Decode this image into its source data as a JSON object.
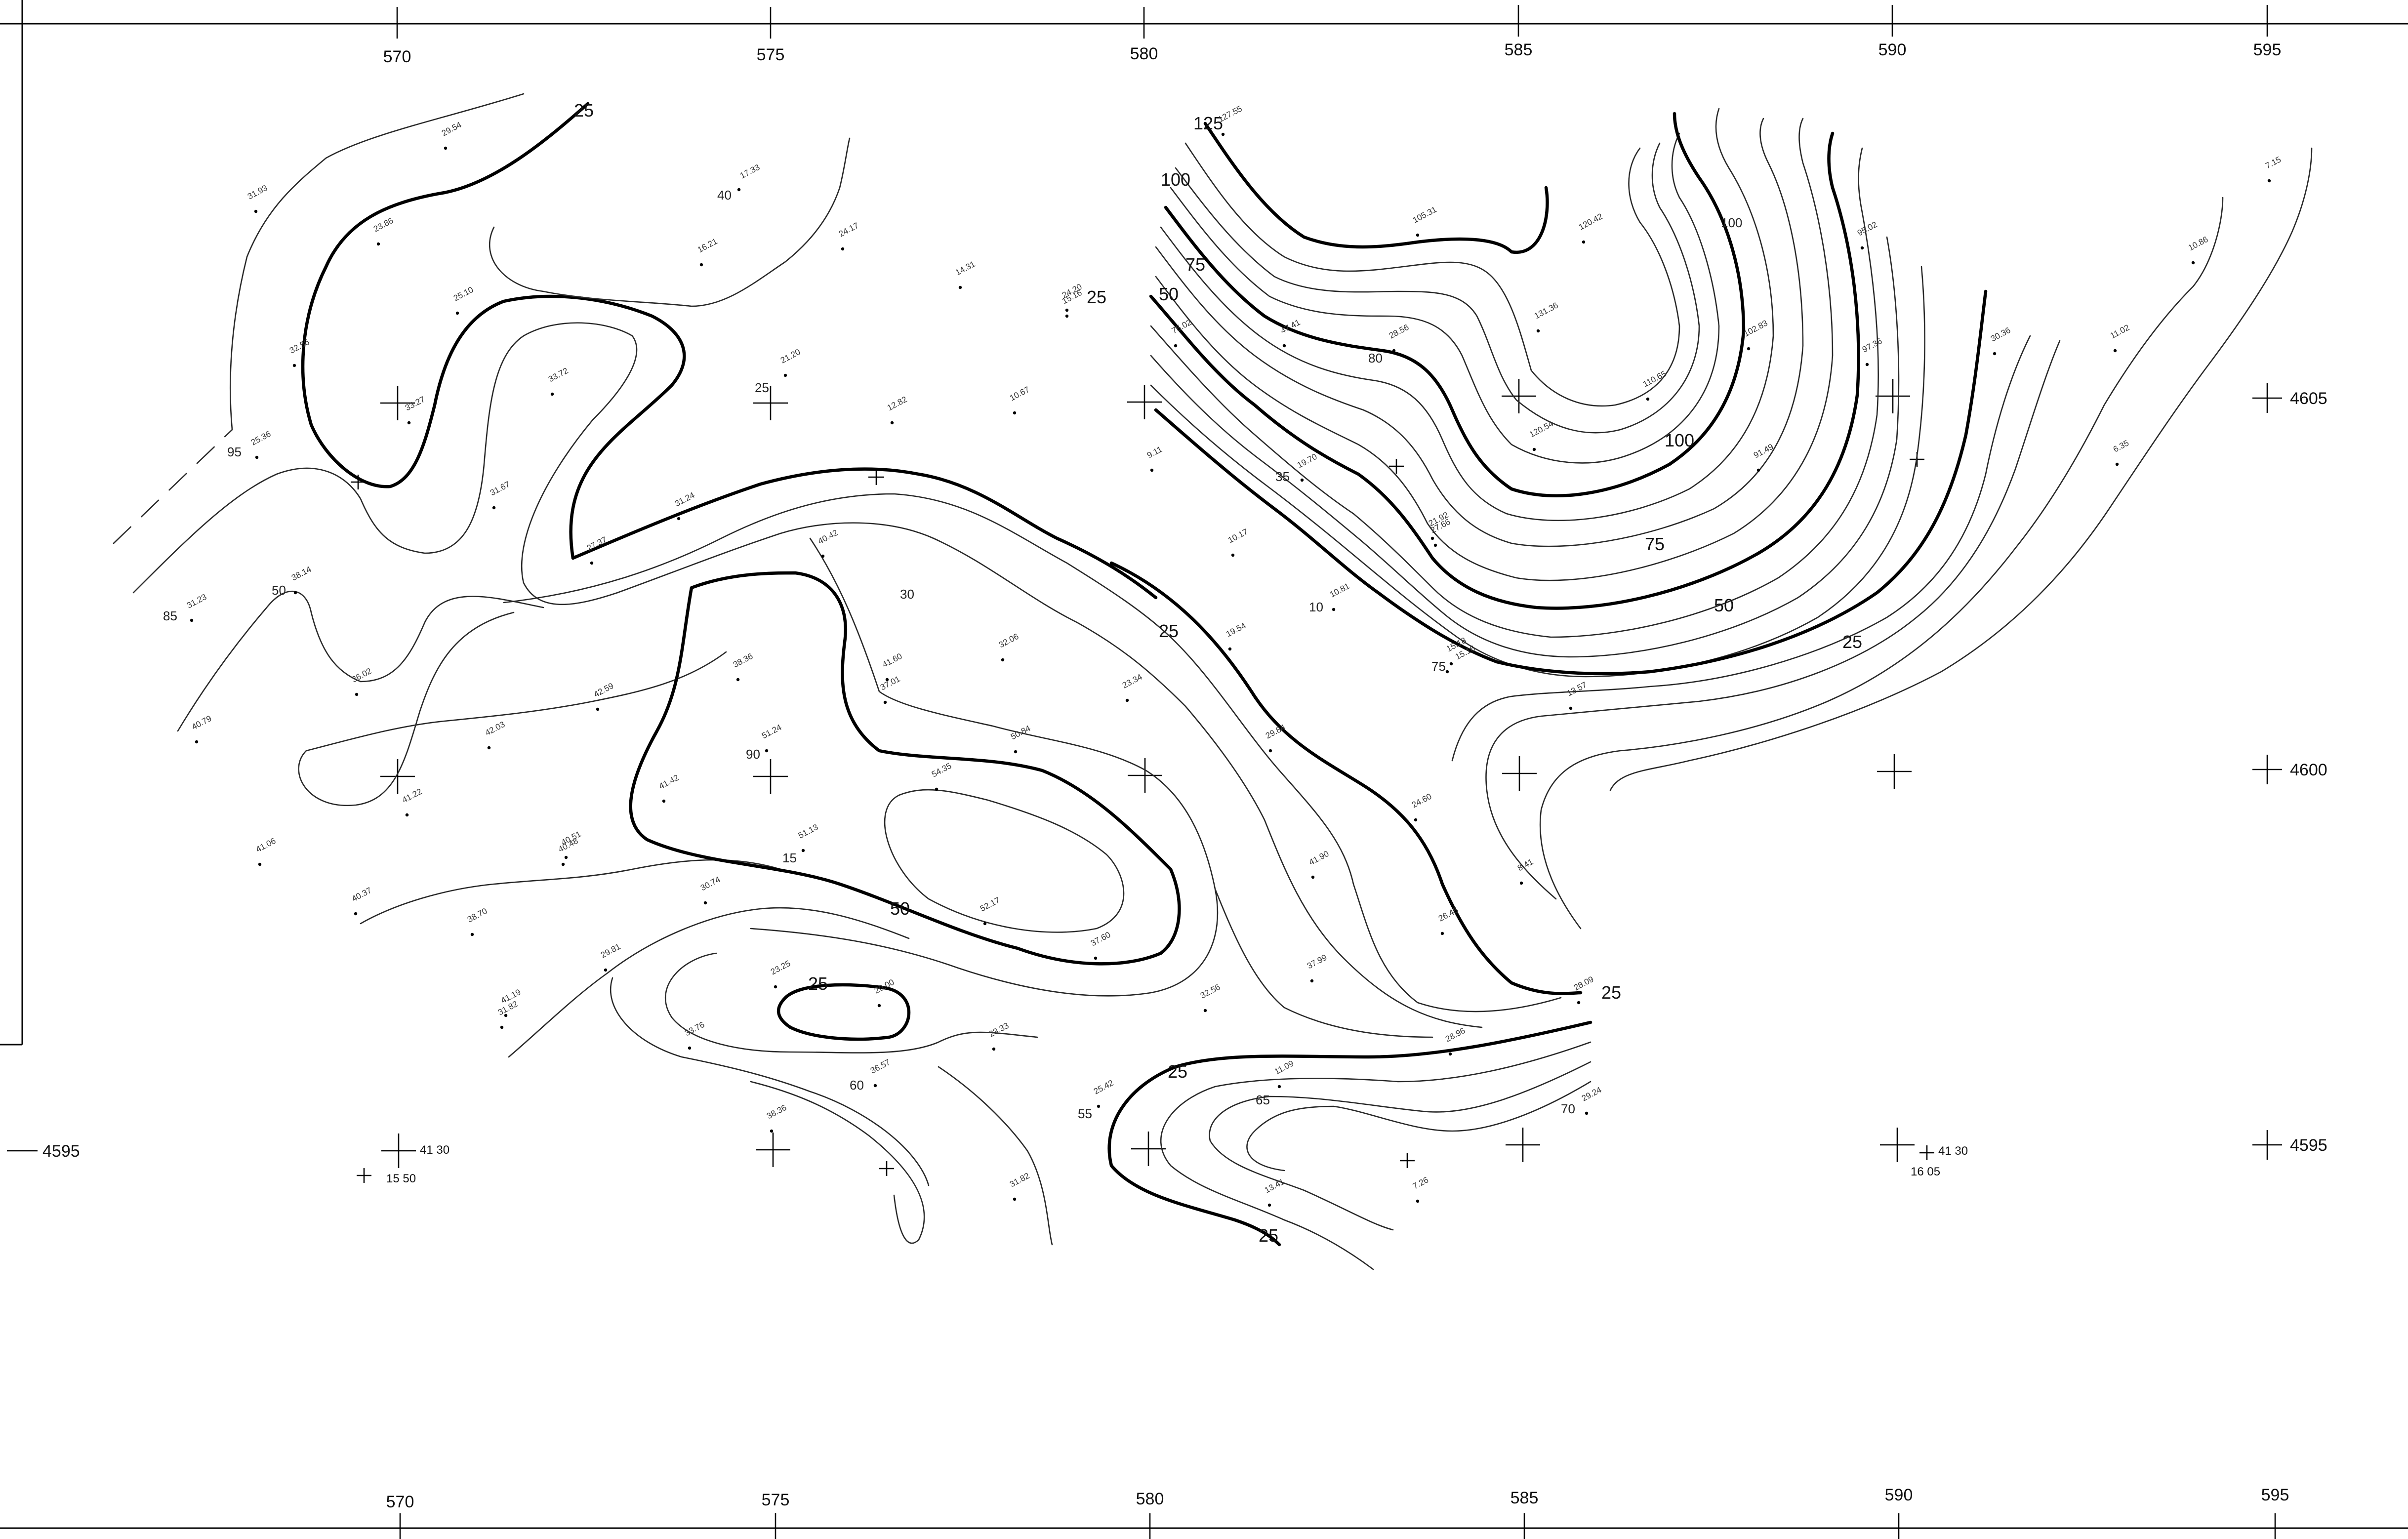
{
  "map": {
    "easting_ticks": [
      "570",
      "575",
      "580",
      "585",
      "590",
      "595"
    ],
    "northing_ticks": [
      "4605",
      "4600",
      "4595"
    ],
    "corner_annotations": [
      {
        "lat": "41 30",
        "lon": "15 50"
      },
      {
        "lat": "41 30",
        "lon": "16 05"
      }
    ],
    "contour_index_labels": [
      "25",
      "25",
      "25",
      "25",
      "25",
      "25",
      "25",
      "25",
      "50",
      "50",
      "50",
      "75",
      "75",
      "100",
      "100",
      "125"
    ],
    "contour_annotations": [
      "95",
      "85",
      "50",
      "40",
      "25",
      "30",
      "90",
      "15",
      "60",
      "55",
      "65",
      "70",
      "35",
      "10",
      "75",
      "80",
      "100"
    ],
    "spot_labels": [
      "31.93",
      "29.54",
      "23.86",
      "25.10",
      "32.56",
      "33.27",
      "25.36",
      "31.23",
      "38.14",
      "36.02",
      "40.79",
      "41.22",
      "41.06",
      "42.03",
      "40.48",
      "40.37",
      "38.70",
      "42.59",
      "31.82",
      "33.72",
      "29.81",
      "31.67",
      "27.37",
      "31.24",
      "17.33",
      "16.21",
      "24.17",
      "14.31",
      "15.16",
      "12.82",
      "10.67",
      "9.11",
      "19.70",
      "10.81",
      "10.17",
      "19.54",
      "15.16",
      "127.55",
      "105.31",
      "120.42",
      "131.36",
      "110.65",
      "120.54",
      "102.83",
      "91.49",
      "95.02",
      "97.36",
      "30.36",
      "11.02",
      "10.86",
      "7.15",
      "6.35",
      "13.57",
      "8.41",
      "28.09",
      "26.45",
      "41.90",
      "24.60",
      "23.34",
      "32.06",
      "37.01",
      "29.84",
      "38.36",
      "41.42",
      "51.24",
      "51.13",
      "50.84",
      "54.35",
      "52.17",
      "37.60",
      "41.60",
      "32.56",
      "37.99",
      "23.25",
      "20.00",
      "33.76",
      "23.33",
      "36.57",
      "38.36",
      "31.82",
      "28.96",
      "25.42",
      "11.09",
      "13.41",
      "7.26",
      "29.24",
      "41.19",
      "30.74",
      "40.51",
      "40.42",
      "21.20",
      "24.20",
      "21.92",
      "75.02",
      "47.41",
      "28.56",
      "27.66",
      "15.18"
    ]
  }
}
